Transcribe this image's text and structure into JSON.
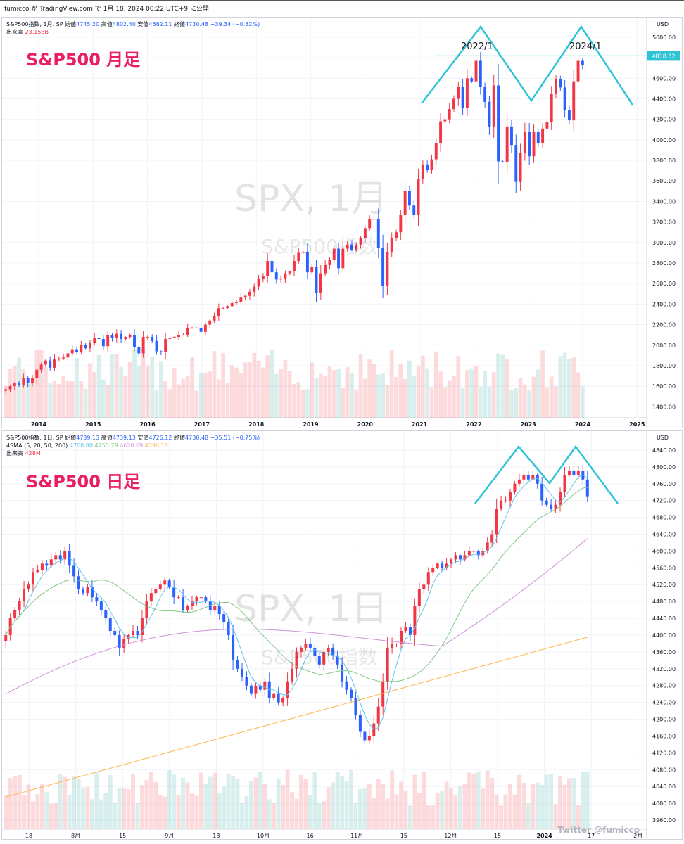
{
  "header": {
    "text": "fumicco が TradingView.com で 1月 18, 2024 00:22 UTC+9 に公開"
  },
  "monthly": {
    "legend": {
      "symbol": "S&P500指数, 1月, SP",
      "open_label": "始値",
      "open": "4745.20",
      "high_label": "高値",
      "high": "4802.40",
      "low_label": "安値",
      "low": "4682.11",
      "close_label": "終値",
      "close": "4730.48",
      "change": "−39.34 (−0.82%)",
      "volume_label": "出来高",
      "volume": "23.153B"
    },
    "title": "S&P500 月足",
    "watermark": "SPX, 1月",
    "watermark_sub": "S&P500指数",
    "annotations": [
      "2022/1",
      "2024/1"
    ],
    "price_tag": "4818.62"
  },
  "daily": {
    "legend": {
      "symbol": "S&P500指数, 1日, SP",
      "open_label": "始値",
      "open": "4739.13",
      "high_label": "高値",
      "high": "4739.13",
      "low_label": "安値",
      "low": "4726.12",
      "close_label": "終値",
      "close": "4730.48",
      "change": "−35.51 (−0.75%)",
      "ma_label": "4SMA (5, 20, 50, 200)",
      "ma_values": [
        "4768.80",
        "4750.79",
        "4620.09",
        "4396.18"
      ],
      "volume_label": "出来高",
      "volume": "428M"
    },
    "title": "S&P500 日足",
    "watermark": "SPX, 1日",
    "watermark_sub": "S&P500指数",
    "credit": "Twitter @fumicco"
  },
  "colors": {
    "up": "#f23645",
    "down": "#2962ff",
    "pattern": "#2ec4d6",
    "ma5": "#5fc4e8",
    "ma20": "#81c784",
    "ma50": "#ce93d8",
    "ma200": "#ffb74d"
  },
  "chart_data": [
    {
      "type": "candlestick",
      "timeframe": "monthly",
      "currency": "USD",
      "xticks": [
        "2014",
        "2015",
        "2016",
        "2017",
        "2018",
        "2019",
        "2020",
        "2021",
        "2022",
        "2023",
        "2024",
        "2025"
      ],
      "yticks": [
        1400,
        1600,
        1800,
        2000,
        2200,
        2400,
        2600,
        2800,
        3000,
        3200,
        3400,
        3600,
        3800,
        4000,
        4200,
        4400,
        4600,
        4800,
        5000
      ],
      "ylim": [
        1320,
        5150
      ],
      "x_start": "2013-03",
      "x_end": "2025-06",
      "closes": [
        1570,
        1600,
        1630,
        1610,
        1680,
        1630,
        1680,
        1760,
        1810,
        1850,
        1780,
        1860,
        1870,
        1880,
        1920,
        1960,
        1930,
        2000,
        1970,
        2020,
        2070,
        2060,
        1990,
        2100,
        2070,
        2110,
        2060,
        2080,
        2100,
        1980,
        1920,
        2080,
        2080,
        2040,
        1940,
        1930,
        2060,
        2070,
        2080,
        2100,
        2100,
        2170,
        2170,
        2170,
        2130,
        2200,
        2240,
        2280,
        2360,
        2360,
        2380,
        2410,
        2420,
        2470,
        2480,
        2520,
        2570,
        2650,
        2670,
        2820,
        2710,
        2640,
        2650,
        2700,
        2720,
        2820,
        2900,
        2910,
        2710,
        2760,
        2510,
        2700,
        2780,
        2830,
        2940,
        2750,
        2940,
        2980,
        2930,
        2980,
        3040,
        3140,
        3230,
        3230,
        2950,
        2580,
        2910,
        3040,
        3100,
        3270,
        3500,
        3360,
        3270,
        3620,
        3760,
        3710,
        3810,
        3970,
        4180,
        4200,
        4300,
        4400,
        4520,
        4310,
        4600,
        4570,
        4770,
        4520,
        4370,
        4130,
        4530,
        3790,
        3780,
        4130,
        3950,
        3590,
        3870,
        4080,
        3840,
        4080,
        3970,
        4110,
        4170,
        4450,
        4590,
        4510,
        4290,
        4190,
        4570,
        4770,
        4730
      ],
      "volume_scale": "relative"
    },
    {
      "type": "candlestick",
      "timeframe": "daily",
      "currency": "USD",
      "xticks": [
        "18",
        "8月",
        "15",
        "9月",
        "18",
        "10月",
        "16",
        "11月",
        "15",
        "12月",
        "15",
        "2024",
        "17",
        "2月"
      ],
      "yticks": [
        3960,
        4000,
        4040,
        4080,
        4120,
        4160,
        4200,
        4240,
        4280,
        4320,
        4360,
        4400,
        4440,
        4480,
        4520,
        4560,
        4600,
        4640,
        4680,
        4720,
        4760,
        4800,
        4840
      ],
      "ylim": [
        3945,
        4875
      ],
      "moving_averages": [
        "SMA5",
        "SMA20",
        "SMA50",
        "SMA200"
      ],
      "closes": [
        4400,
        4440,
        4460,
        4480,
        4510,
        4520,
        4550,
        4555,
        4570,
        4565,
        4580,
        4590,
        4580,
        4600,
        4565,
        4540,
        4510,
        4500,
        4515,
        4490,
        4480,
        4460,
        4440,
        4410,
        4400,
        4370,
        4390,
        4400,
        4410,
        4400,
        4440,
        4480,
        4500,
        4510,
        4520,
        4530,
        4515,
        4490,
        4490,
        4460,
        4470,
        4480,
        4490,
        4490,
        4480,
        4460,
        4470,
        4450,
        4430,
        4400,
        4340,
        4320,
        4300,
        4280,
        4260,
        4280,
        4270,
        4290,
        4250,
        4260,
        4240,
        4250,
        4290,
        4320,
        4360,
        4370,
        4380,
        4370,
        4350,
        4330,
        4360,
        4370,
        4350,
        4330,
        4290,
        4270,
        4250,
        4210,
        4170,
        4150,
        4160,
        4190,
        4230,
        4290,
        4370,
        4380,
        4380,
        4410,
        4420,
        4400,
        4470,
        4510,
        4520,
        4550,
        4560,
        4570,
        4560,
        4570,
        4580,
        4590,
        4580,
        4590,
        4600,
        4600,
        4590,
        4600,
        4620,
        4640,
        4700,
        4720,
        4720,
        4740,
        4760,
        4770,
        4780,
        4770,
        4780,
        4760,
        4720,
        4710,
        4700,
        4710,
        4740,
        4780,
        4790,
        4780,
        4790,
        4770,
        4730
      ]
    }
  ]
}
